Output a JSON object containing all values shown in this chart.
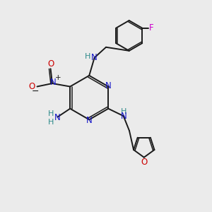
{
  "bg_color": "#ebebeb",
  "bond_color": "#1a1a1a",
  "N_color": "#1414c8",
  "O_color": "#cc0000",
  "F_color": "#cc00cc",
  "H_color": "#2e8b8b",
  "C_color": "#1a1a1a",
  "figsize": [
    3.0,
    3.0
  ],
  "dpi": 100,
  "xlim": [
    0,
    10
  ],
  "ylim": [
    0,
    10
  ]
}
